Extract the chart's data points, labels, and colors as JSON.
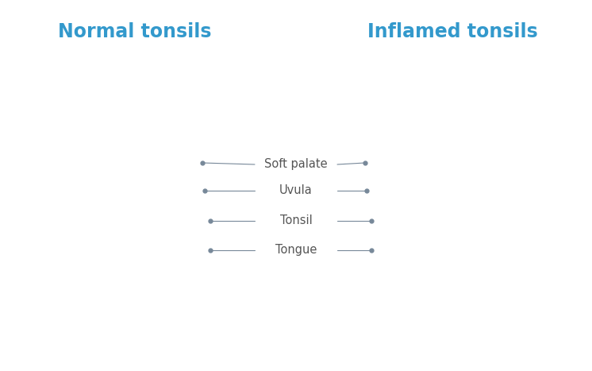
{
  "background_color": "#ffffff",
  "title_left": "Normal tonsils",
  "title_right": "Inflamed tonsils",
  "title_color": "#3399cc",
  "title_fontsize": 17,
  "label_color": "#555555",
  "label_fontsize": 10.5,
  "line_color": "#778899",
  "labels": [
    "Soft palate",
    "Uvula",
    "Tonsil",
    "Tongue"
  ],
  "sk_outer": "#d4878c",
  "sk_mid": "#c97880",
  "sk_light": "#e8adb5",
  "sk_verylght": "#f0c8cc",
  "sk_dark": "#b85060",
  "throat_bg": "#c08090",
  "throat_dark": "#8b2530",
  "throat_mid": "#a83540",
  "palate_color": "#c87880",
  "palate_light": "#d99098",
  "teeth_color": "#f0eeea",
  "teeth_shadow": "#c8c5c0",
  "teeth_highlight": "#ffffff",
  "tongue_color": "#cc7080",
  "tongue_light": "#dd9098",
  "tongue_dark": "#b85060",
  "uvula_color": "#b84050",
  "inflamed_dark": "#aa1515",
  "inflamed_mid": "#cc2020",
  "inflamed_light": "#dd3333",
  "spot_color": "#f0ddc0",
  "spot_color2": "#e8d0b0"
}
